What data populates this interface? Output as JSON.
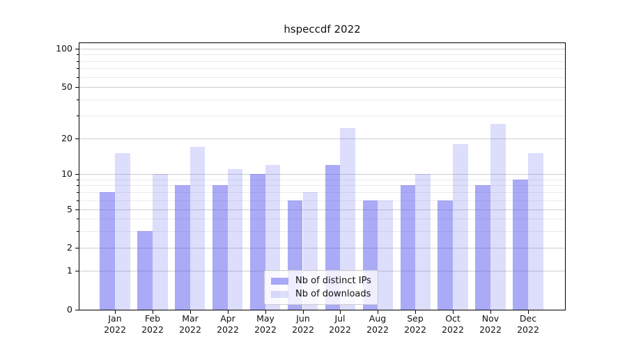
{
  "title": "hspeccdf 2022",
  "legend": {
    "items": [
      {
        "label": "Nb of distinct IPs"
      },
      {
        "label": "Nb of downloads"
      }
    ]
  },
  "y_axis": {
    "tick_labels": [
      "0",
      "1",
      "2",
      "5",
      "10",
      "20",
      "50",
      "100"
    ]
  },
  "x_axis": {
    "tick_labels": [
      "Jan 2022",
      "Feb 2022",
      "Mar 2022",
      "Apr 2022",
      "May 2022",
      "Jun 2022",
      "Jul 2022",
      "Aug 2022",
      "Sep 2022",
      "Oct 2022",
      "Nov 2022",
      "Dec 2022"
    ]
  },
  "colors": {
    "bar_base": "#5555f0",
    "bar_distinct_ips_rendered": "#aaa9f7",
    "bar_downloads_rendered": "#dcdbfb",
    "grid_major": "#cdcdcd",
    "grid_minor": "#ebebeb",
    "axis": "#000000"
  },
  "chart_data": {
    "type": "bar",
    "title": "hspeccdf 2022",
    "categories": [
      "Jan 2022",
      "Feb 2022",
      "Mar 2022",
      "Apr 2022",
      "May 2022",
      "Jun 2022",
      "Jul 2022",
      "Aug 2022",
      "Sep 2022",
      "Oct 2022",
      "Nov 2022",
      "Dec 2022"
    ],
    "series": [
      {
        "name": "Nb of distinct IPs",
        "color": "#5555f0",
        "alpha": 0.5,
        "values": [
          7,
          3,
          8,
          8,
          10,
          6,
          12,
          6,
          8,
          6,
          8,
          9
        ]
      },
      {
        "name": "Nb of downloads",
        "color": "#5555f0",
        "alpha": 0.2,
        "values": [
          15,
          10,
          17,
          11,
          12,
          7,
          24,
          6,
          10,
          18,
          26,
          15
        ]
      }
    ],
    "xlabel": "",
    "ylabel": "",
    "ylim": [
      0,
      100
    ],
    "y_scale": "log-like (linear 0-1, logarithmic above)",
    "y_ticks": [
      0,
      1,
      2,
      5,
      10,
      20,
      50,
      100
    ],
    "y_minor_ticks": [
      3,
      4,
      6,
      7,
      8,
      9,
      30,
      40,
      60,
      70,
      80,
      90
    ],
    "grid": true,
    "legend_position": "lower center inside plot"
  }
}
